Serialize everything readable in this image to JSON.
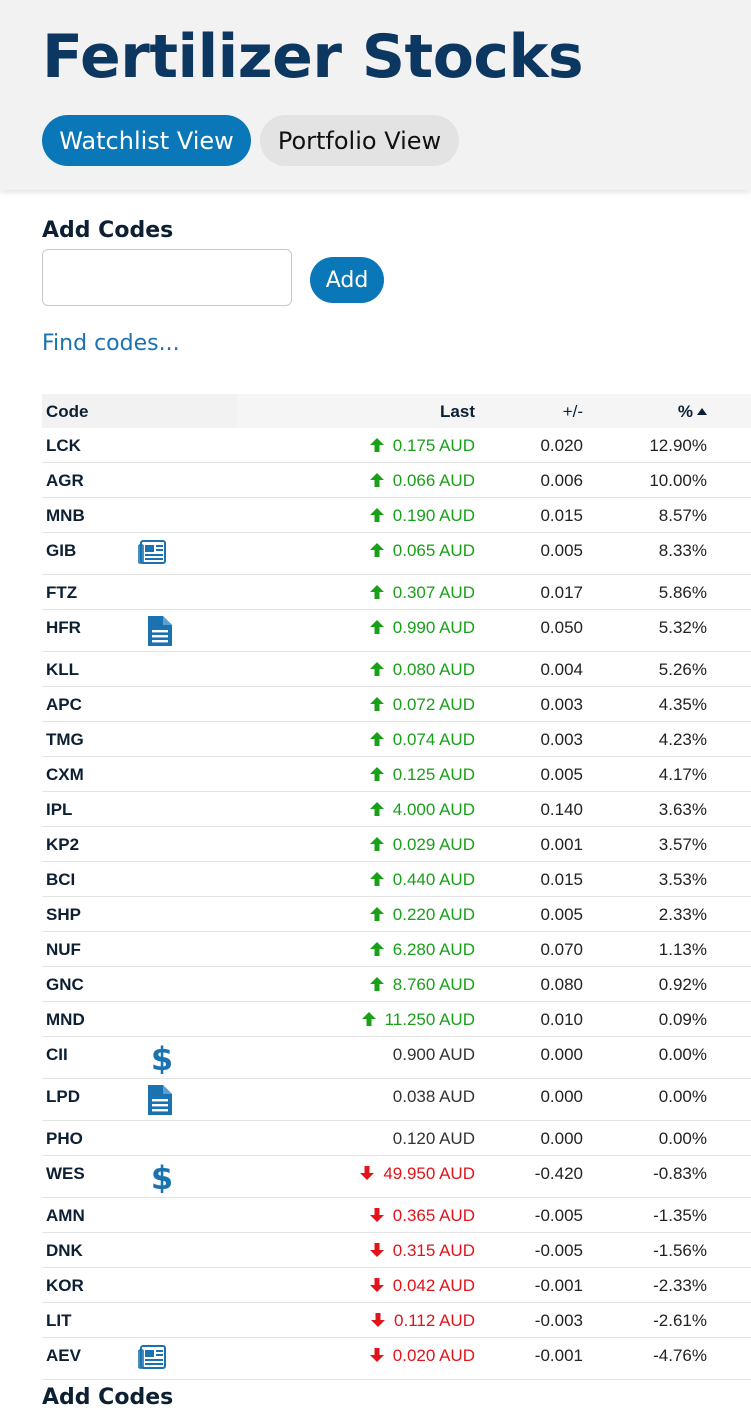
{
  "header": {
    "title": "Fertilizer Stocks",
    "tabs": [
      {
        "label": "Watchlist View",
        "active": true
      },
      {
        "label": "Portfolio View",
        "active": false
      }
    ]
  },
  "add_codes": {
    "label": "Add Codes",
    "input_value": "",
    "input_placeholder": "",
    "button_label": "Add",
    "find_link": "Find codes..."
  },
  "table": {
    "columns": {
      "code": "Code",
      "last": "Last",
      "change": "+/-",
      "pct": "%"
    },
    "sort": {
      "column": "pct",
      "direction": "descending"
    },
    "rows": [
      {
        "code": "LCK",
        "icon": "",
        "last": "0.175 AUD",
        "dir": "up",
        "change": "0.020",
        "pct": "12.90%"
      },
      {
        "code": "AGR",
        "icon": "",
        "last": "0.066 AUD",
        "dir": "up",
        "change": "0.006",
        "pct": "10.00%"
      },
      {
        "code": "MNB",
        "icon": "",
        "last": "0.190 AUD",
        "dir": "up",
        "change": "0.015",
        "pct": "8.57%"
      },
      {
        "code": "GIB",
        "icon": "newspaper-icon",
        "last": "0.065 AUD",
        "dir": "up",
        "change": "0.005",
        "pct": "8.33%"
      },
      {
        "code": "FTZ",
        "icon": "",
        "last": "0.307 AUD",
        "dir": "up",
        "change": "0.017",
        "pct": "5.86%"
      },
      {
        "code": "HFR",
        "icon": "document-icon",
        "last": "0.990 AUD",
        "dir": "up",
        "change": "0.050",
        "pct": "5.32%"
      },
      {
        "code": "KLL",
        "icon": "",
        "last": "0.080 AUD",
        "dir": "up",
        "change": "0.004",
        "pct": "5.26%"
      },
      {
        "code": "APC",
        "icon": "",
        "last": "0.072 AUD",
        "dir": "up",
        "change": "0.003",
        "pct": "4.35%"
      },
      {
        "code": "TMG",
        "icon": "",
        "last": "0.074 AUD",
        "dir": "up",
        "change": "0.003",
        "pct": "4.23%"
      },
      {
        "code": "CXM",
        "icon": "",
        "last": "0.125 AUD",
        "dir": "up",
        "change": "0.005",
        "pct": "4.17%"
      },
      {
        "code": "IPL",
        "icon": "",
        "last": "4.000 AUD",
        "dir": "up",
        "change": "0.140",
        "pct": "3.63%"
      },
      {
        "code": "KP2",
        "icon": "",
        "last": "0.029 AUD",
        "dir": "up",
        "change": "0.001",
        "pct": "3.57%"
      },
      {
        "code": "BCI",
        "icon": "",
        "last": "0.440 AUD",
        "dir": "up",
        "change": "0.015",
        "pct": "3.53%"
      },
      {
        "code": "SHP",
        "icon": "",
        "last": "0.220 AUD",
        "dir": "up",
        "change": "0.005",
        "pct": "2.33%"
      },
      {
        "code": "NUF",
        "icon": "",
        "last": "6.280 AUD",
        "dir": "up",
        "change": "0.070",
        "pct": "1.13%"
      },
      {
        "code": "GNC",
        "icon": "",
        "last": "8.760 AUD",
        "dir": "up",
        "change": "0.080",
        "pct": "0.92%"
      },
      {
        "code": "MND",
        "icon": "",
        "last": "11.250 AUD",
        "dir": "up",
        "change": "0.010",
        "pct": "0.09%"
      },
      {
        "code": "CII",
        "icon": "dollar-icon",
        "last": "0.900 AUD",
        "dir": "none",
        "change": "0.000",
        "pct": "0.00%"
      },
      {
        "code": "LPD",
        "icon": "document-icon",
        "last": "0.038 AUD",
        "dir": "none",
        "change": "0.000",
        "pct": "0.00%"
      },
      {
        "code": "PHO",
        "icon": "",
        "last": "0.120 AUD",
        "dir": "none",
        "change": "0.000",
        "pct": "0.00%"
      },
      {
        "code": "WES",
        "icon": "dollar-icon",
        "last": "49.950 AUD",
        "dir": "down",
        "change": "-0.420",
        "pct": "-0.83%"
      },
      {
        "code": "AMN",
        "icon": "",
        "last": "0.365 AUD",
        "dir": "down",
        "change": "-0.005",
        "pct": "-1.35%"
      },
      {
        "code": "DNK",
        "icon": "",
        "last": "0.315 AUD",
        "dir": "down",
        "change": "-0.005",
        "pct": "-1.56%"
      },
      {
        "code": "KOR",
        "icon": "",
        "last": "0.042 AUD",
        "dir": "down",
        "change": "-0.001",
        "pct": "-2.33%"
      },
      {
        "code": "LIT",
        "icon": "",
        "last": "0.112 AUD",
        "dir": "down",
        "change": "-0.003",
        "pct": "-2.61%"
      },
      {
        "code": "AEV",
        "icon": "newspaper-icon",
        "last": "0.020 AUD",
        "dir": "down",
        "change": "-0.001",
        "pct": "-4.76%"
      }
    ]
  },
  "footer": {
    "cut_label": "Add Codes"
  },
  "colors": {
    "accent": "#0a77b8",
    "up": "#19a019",
    "down": "#e0141a",
    "title": "#0c3760"
  }
}
